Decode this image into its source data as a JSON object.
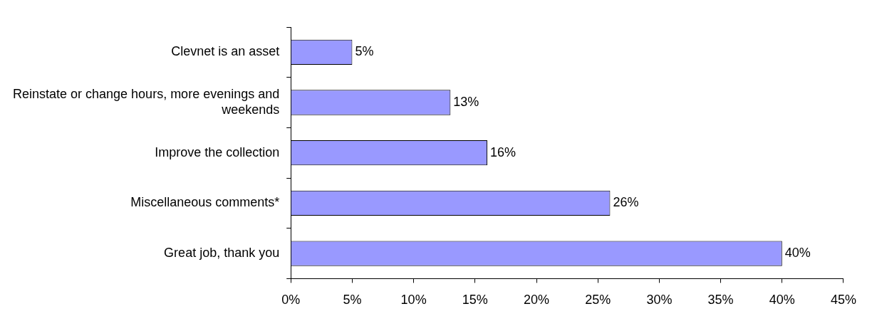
{
  "chart_data": {
    "type": "bar",
    "orientation": "horizontal",
    "categories": [
      "Clevnet is an asset",
      "Reinstate or change hours, more evenings and weekends",
      "Improve the collection",
      "Miscellaneous comments*",
      "Great job, thank you"
    ],
    "values": [
      5,
      13,
      16,
      26,
      40
    ],
    "value_labels": [
      "5%",
      "13%",
      "16%",
      "26%",
      "40%"
    ],
    "color": "#9999ff",
    "xlim": [
      0,
      45
    ],
    "xticks": [
      {
        "value": 0,
        "label": "0%"
      },
      {
        "value": 5,
        "label": "5%"
      },
      {
        "value": 10,
        "label": "10%"
      },
      {
        "value": 15,
        "label": "15%"
      },
      {
        "value": 20,
        "label": "20%"
      },
      {
        "value": 25,
        "label": "25%"
      },
      {
        "value": 30,
        "label": "30%"
      },
      {
        "value": 35,
        "label": "35%"
      },
      {
        "value": 40,
        "label": "40%"
      },
      {
        "value": 45,
        "label": "45%"
      }
    ],
    "grid": false,
    "legend": false
  }
}
